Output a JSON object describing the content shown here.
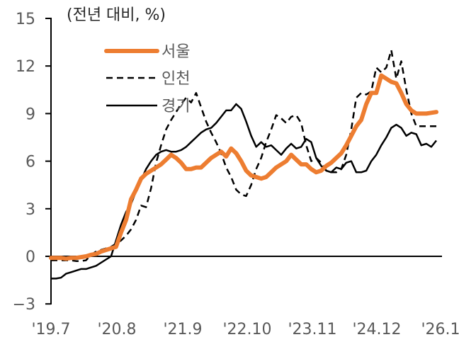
{
  "chart_data": {
    "type": "line",
    "title": "",
    "unit_label": "(전년 대비, %)",
    "xlabel": "",
    "ylabel": "(전년 대비, %)",
    "ylim": [
      -3,
      15
    ],
    "yticks": [
      15,
      12,
      9,
      6,
      3,
      0,
      -3
    ],
    "xtick_labels": [
      "'19.7",
      "'20.8",
      "'21.9",
      "'22.10",
      "'23.11",
      "'24.12",
      "'26.1"
    ],
    "x_start": "2019-07",
    "x_end": "2025-12",
    "legend": [
      "서울",
      "인천",
      "경기"
    ],
    "legend_position": "upper-left",
    "grid": false,
    "colors": {
      "서울": "#ED7D31",
      "인천": "#000000",
      "경기": "#000000",
      "axis": "#000000",
      "tick_text": "#595959"
    },
    "series": [
      {
        "name": "서울",
        "style": "solid-thick",
        "color": "#ED7D31",
        "values": [
          -0.1,
          -0.1,
          -0.1,
          -0.15,
          -0.1,
          -0.1,
          -0.05,
          0.0,
          0.1,
          0.15,
          0.3,
          0.4,
          0.5,
          0.6,
          1.5,
          2.3,
          3.6,
          4.2,
          4.9,
          5.2,
          5.4,
          5.6,
          5.8,
          6.1,
          6.4,
          6.2,
          5.9,
          5.5,
          5.5,
          5.6,
          5.6,
          5.9,
          6.2,
          6.4,
          6.6,
          6.3,
          6.8,
          6.5,
          6.0,
          5.4,
          5.1,
          5.0,
          4.9,
          5.0,
          5.3,
          5.6,
          5.8,
          6.0,
          6.4,
          6.1,
          5.8,
          5.8,
          5.5,
          5.3,
          5.4,
          5.7,
          5.9,
          6.2,
          6.5,
          7.0,
          7.6,
          8.2,
          8.6,
          9.6,
          10.3,
          10.3,
          11.4,
          11.2,
          11.0,
          10.9,
          10.3,
          9.6,
          9.2,
          9.0,
          9.0,
          9.0,
          9.05,
          9.1
        ]
      },
      {
        "name": "인천",
        "style": "dashed",
        "color": "#000000",
        "values": [
          -0.25,
          -0.25,
          -0.25,
          -0.25,
          -0.25,
          -0.3,
          -0.3,
          -0.25,
          0.1,
          0.3,
          0.4,
          0.5,
          0.6,
          0.8,
          1.0,
          1.3,
          1.7,
          2.3,
          3.2,
          3.1,
          4.3,
          5.9,
          7.0,
          8.0,
          8.6,
          9.1,
          9.6,
          10.0,
          9.7,
          10.3,
          9.4,
          8.5,
          7.8,
          7.2,
          6.5,
          5.6,
          5.0,
          4.2,
          3.9,
          3.8,
          4.5,
          5.5,
          6.2,
          7.2,
          8.0,
          8.9,
          8.7,
          8.4,
          8.8,
          8.9,
          8.4,
          7.0,
          6.0,
          6.2,
          5.9,
          5.4,
          5.3,
          5.3,
          5.5,
          6.4,
          8.0,
          10.0,
          10.3,
          10.2,
          10.4,
          11.9,
          11.6,
          11.9,
          13.0,
          11.2,
          12.3,
          10.5,
          9.0,
          8.2,
          8.2,
          8.2,
          8.2,
          8.2
        ]
      },
      {
        "name": "경기",
        "style": "solid-thin",
        "color": "#000000",
        "values": [
          -1.4,
          -1.4,
          -1.35,
          -1.1,
          -1.0,
          -0.9,
          -0.8,
          -0.8,
          -0.7,
          -0.6,
          -0.4,
          -0.2,
          0.0,
          1.0,
          2.0,
          2.8,
          3.3,
          4.1,
          4.8,
          5.5,
          6.0,
          6.4,
          6.6,
          6.7,
          6.6,
          6.6,
          6.7,
          6.9,
          7.2,
          7.5,
          7.8,
          8.0,
          8.1,
          8.4,
          8.8,
          9.2,
          9.2,
          9.6,
          9.3,
          8.5,
          7.6,
          6.9,
          7.2,
          6.9,
          7.0,
          6.7,
          6.4,
          6.8,
          7.1,
          6.8,
          6.9,
          7.4,
          7.2,
          6.2,
          5.7,
          5.4,
          5.3,
          5.6,
          5.5,
          5.9,
          6.0,
          5.3,
          5.3,
          5.4,
          6.0,
          6.4,
          7.0,
          7.5,
          8.1,
          8.3,
          8.1,
          7.6,
          7.8,
          7.7,
          7.0,
          7.1,
          6.9,
          7.3
        ]
      }
    ]
  }
}
